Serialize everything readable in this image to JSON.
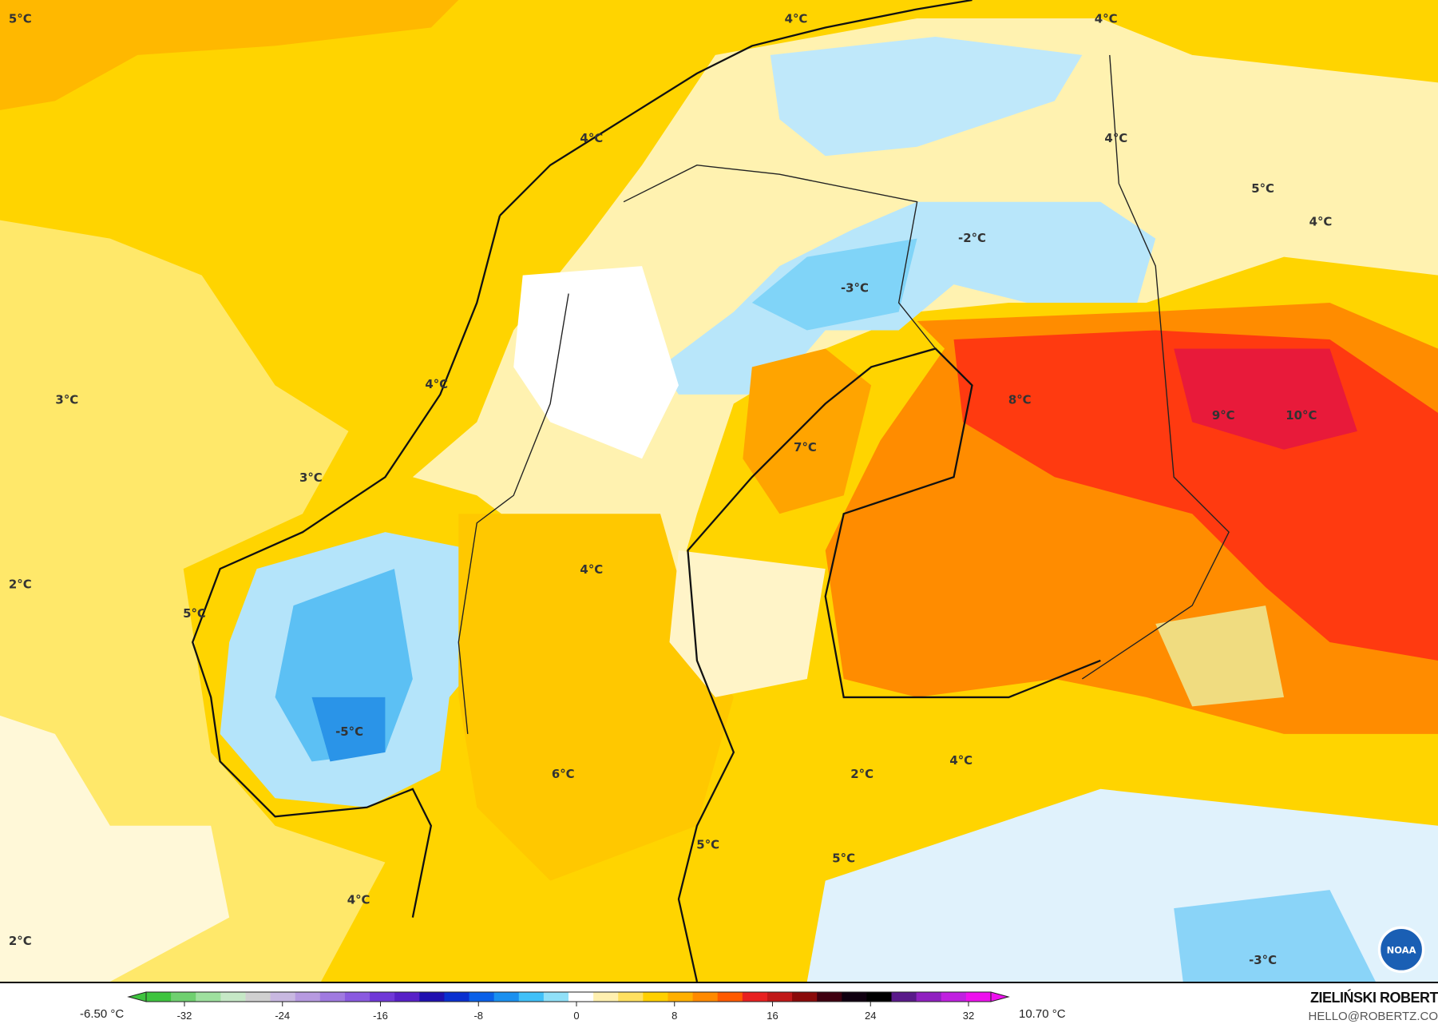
{
  "map": {
    "labels": [
      {
        "text": "5°C",
        "lon_lat_hint": "north-atlantic-nw"
      },
      {
        "text": "4°C"
      },
      {
        "text": "4°C"
      },
      {
        "text": "4°C"
      },
      {
        "text": "4°C"
      },
      {
        "text": "5°C"
      },
      {
        "text": "4°C"
      },
      {
        "text": "-2°C"
      },
      {
        "text": "-3°C"
      },
      {
        "text": "4°C"
      },
      {
        "text": "3°C"
      },
      {
        "text": "8°C"
      },
      {
        "text": "9°C"
      },
      {
        "text": "10°C"
      },
      {
        "text": "7°C"
      },
      {
        "text": "3°C"
      },
      {
        "text": "4°C"
      },
      {
        "text": "2°C"
      },
      {
        "text": "5°C"
      },
      {
        "text": "-5°C"
      },
      {
        "text": "4°C"
      },
      {
        "text": "2°C"
      },
      {
        "text": "6°C"
      },
      {
        "text": "5°C"
      },
      {
        "text": "5°C"
      },
      {
        "text": "4°C"
      },
      {
        "text": "2°C"
      },
      {
        "text": "-3°C"
      }
    ],
    "logo_text": "NOAA"
  },
  "legend": {
    "min_label": "-6.50 °C",
    "max_label": "10.70 °C",
    "ticks": [
      "-32",
      "-24",
      "-16",
      "-8",
      "0",
      "8",
      "16",
      "24",
      "32"
    ],
    "colors": [
      "#3ec43e",
      "#6fd06f",
      "#9ee09e",
      "#c6e8c6",
      "#d0d0d0",
      "#c8b8e0",
      "#b79ae0",
      "#a07ae0",
      "#8a5ae0",
      "#7038d8",
      "#5820c8",
      "#2010b0",
      "#0a30d0",
      "#0a60e8",
      "#1a90f0",
      "#40c0f8",
      "#90e0f8",
      "#ffffff",
      "#fff0b0",
      "#ffe060",
      "#ffd000",
      "#ffb000",
      "#ff8a00",
      "#ff5a00",
      "#e82020",
      "#c01818",
      "#8a0a0a",
      "#400010",
      "#100010",
      "#000000",
      "#5a1a8a",
      "#9020c0",
      "#c020e0",
      "#ee10ee"
    ]
  },
  "credit": {
    "name": "ZIELIŃSKI ROBERT",
    "email": "HELLO@ROBERTZ.CO"
  }
}
